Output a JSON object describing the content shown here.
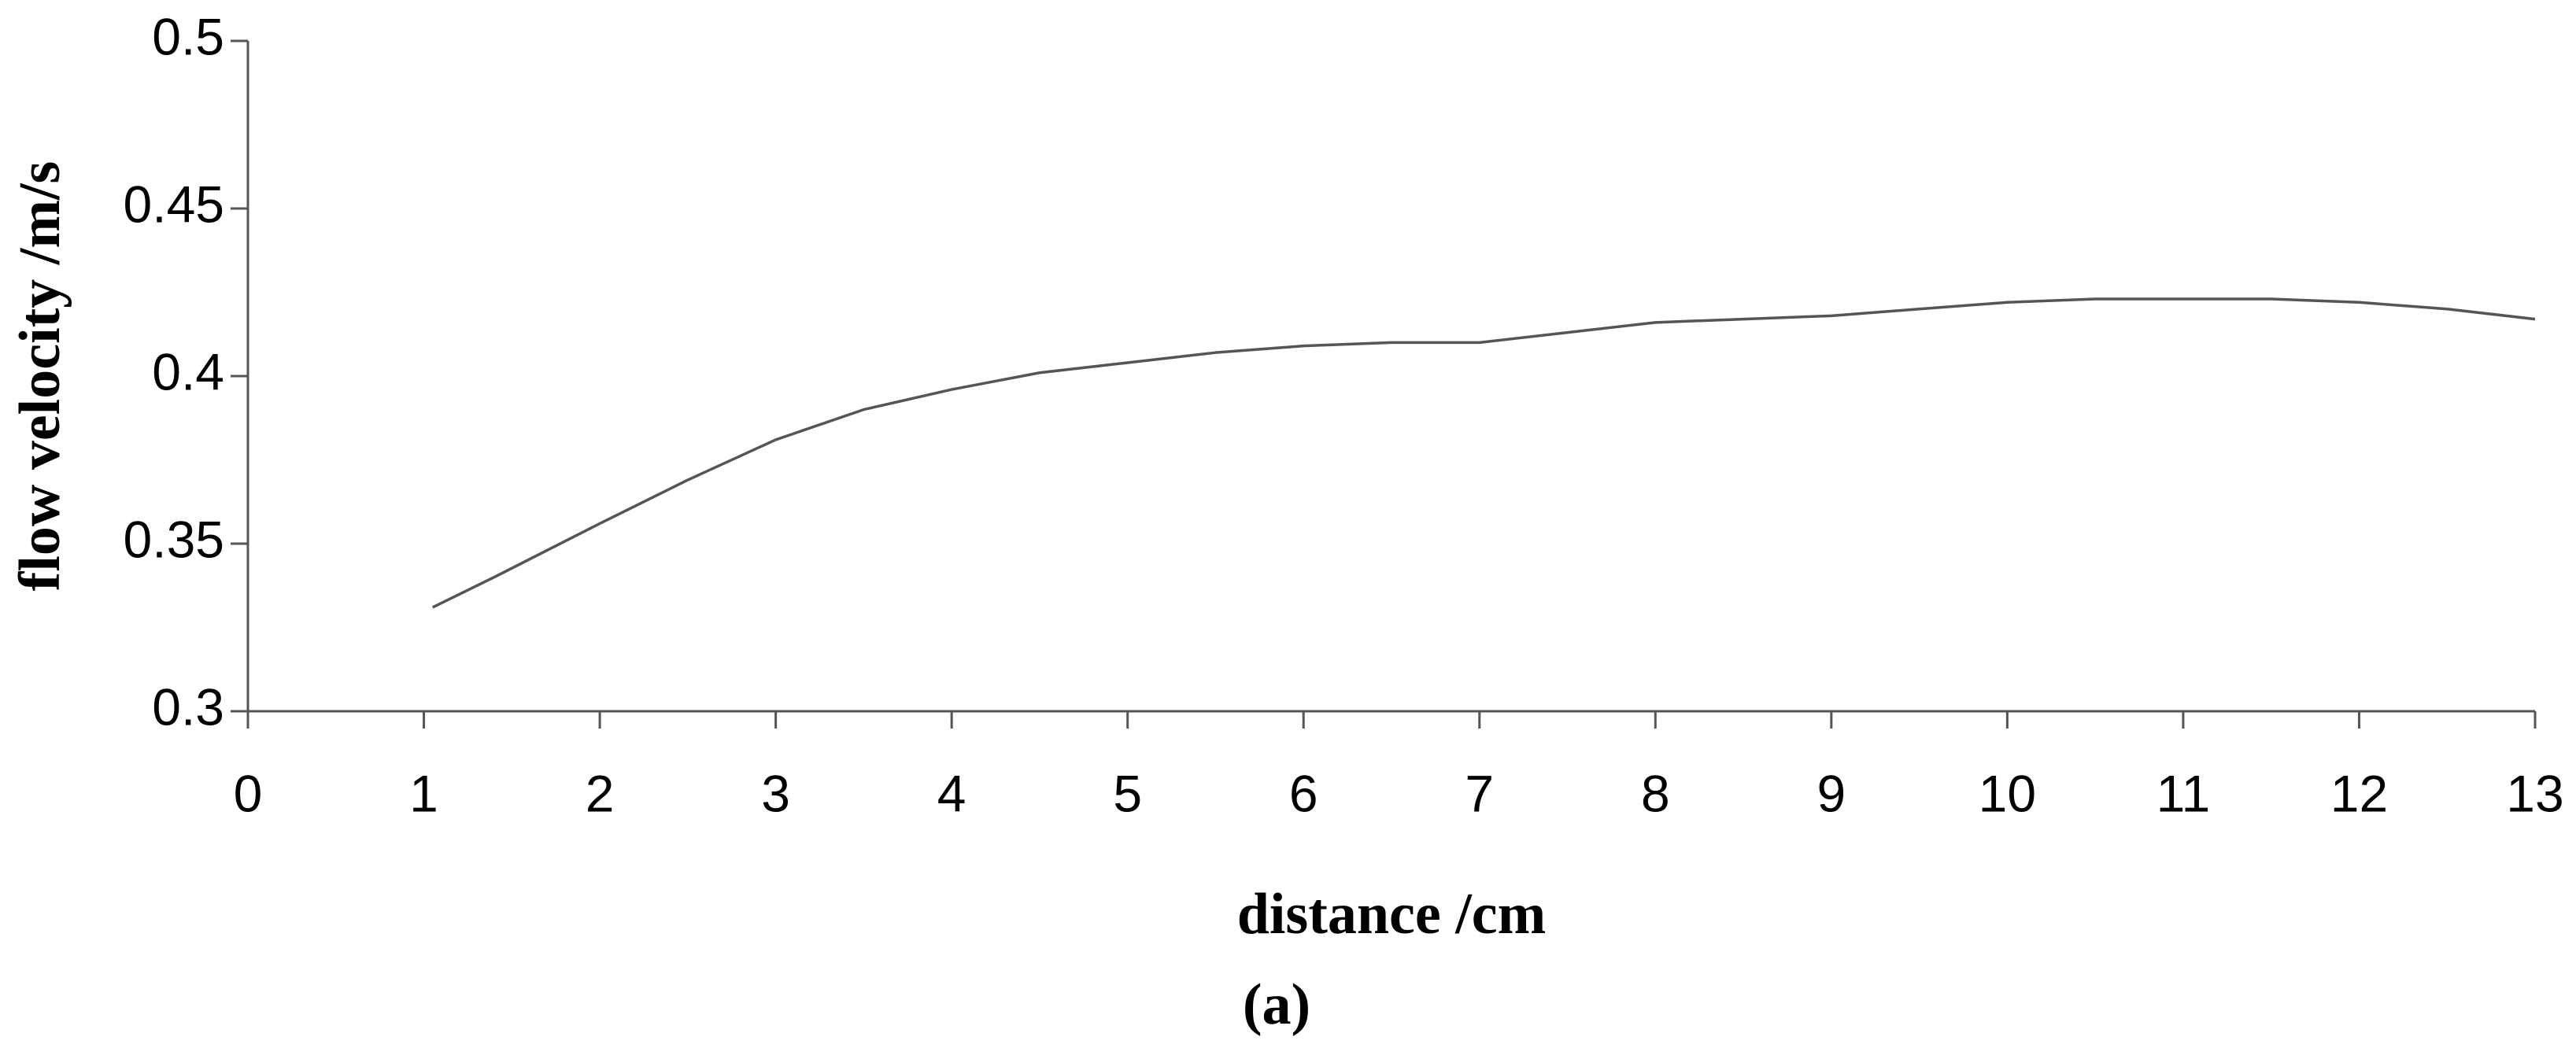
{
  "chart_data": {
    "type": "line",
    "xlabel": "distance /cm",
    "ylabel": "flow velocity /m/s",
    "caption": "(a)",
    "x": [
      1.05,
      1.4,
      2,
      2.5,
      3,
      3.5,
      4,
      4.5,
      5,
      5.5,
      6,
      6.5,
      7,
      7.5,
      8,
      8.5,
      9,
      9.5,
      10,
      10.5,
      11,
      11.5,
      12,
      12.5,
      13
    ],
    "values": [
      0.331,
      0.34,
      0.356,
      0.369,
      0.381,
      0.39,
      0.396,
      0.401,
      0.404,
      0.407,
      0.409,
      0.41,
      0.41,
      0.413,
      0.416,
      0.417,
      0.418,
      0.42,
      0.422,
      0.423,
      0.423,
      0.423,
      0.422,
      0.42,
      0.417
    ],
    "color": "#555555",
    "xlim": [
      0,
      13
    ],
    "xticks": [
      0,
      1,
      2,
      3,
      4,
      5,
      6,
      7,
      8,
      9,
      10,
      11,
      12,
      13
    ],
    "ylim": [
      0.3,
      0.5
    ],
    "yticks": [
      0.3,
      0.35,
      0.4,
      0.45,
      0.5
    ],
    "grid": false
  }
}
